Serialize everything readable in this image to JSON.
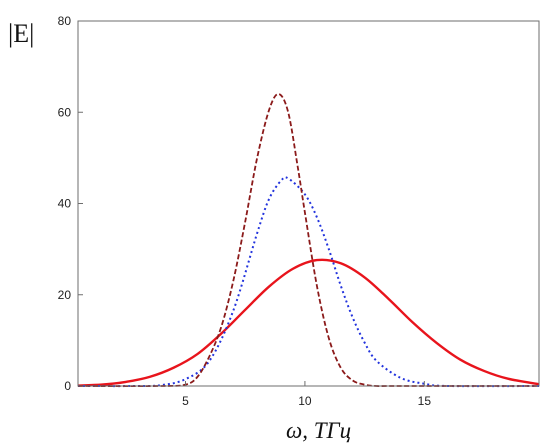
{
  "chart_data": {
    "type": "line",
    "ylabel": "|E|",
    "xlabel": "ω, ТГц",
    "xlim": [
      0.5,
      19.8
    ],
    "ylim": [
      0,
      80
    ],
    "x_ticks": [
      5,
      10,
      15
    ],
    "y_ticks": [
      0,
      20,
      40,
      60,
      80
    ],
    "grid": false,
    "series": [
      {
        "style": "solid",
        "color": "#e8141c",
        "x": [
          0.5,
          1.5,
          2.5,
          3.5,
          4.5,
          5.5,
          6.5,
          7.5,
          8.5,
          9.5,
          10.5,
          11.5,
          12.5,
          13.5,
          14.5,
          15.5,
          16.5,
          17.5,
          18.5,
          19.8
        ],
        "y": [
          0.1,
          0.3,
          0.9,
          2.0,
          4.0,
          7.0,
          11.5,
          16.7,
          21.8,
          25.7,
          27.6,
          26.9,
          23.8,
          19.1,
          14.0,
          9.5,
          5.8,
          3.3,
          1.6,
          0.4
        ]
      },
      {
        "style": "dotted",
        "color": "#2233dd",
        "x": [
          0.5,
          3.0,
          4.0,
          5.0,
          6.0,
          7.0,
          8.0,
          8.5,
          9.0,
          9.3,
          10.0,
          10.5,
          11.0,
          11.5,
          12.0,
          12.5,
          13.0,
          14.0,
          15.0,
          16.0,
          19.8
        ],
        "y": [
          0,
          0,
          0.2,
          1.5,
          5.5,
          16.5,
          33.5,
          41.0,
          45.0,
          45.5,
          42.0,
          37.0,
          30.0,
          22.0,
          15.0,
          9.5,
          5.5,
          1.8,
          0.5,
          0,
          0
        ]
      },
      {
        "style": "dashed",
        "color": "#8b1a1a",
        "x": [
          0.5,
          4.0,
          5.0,
          5.5,
          6.0,
          6.5,
          7.0,
          7.5,
          8.0,
          8.5,
          8.9,
          9.3,
          9.7,
          10.0,
          10.5,
          11.0,
          11.5,
          12.0,
          12.5,
          13.0,
          14.0,
          19.8
        ],
        "y": [
          0,
          0,
          0.3,
          2.0,
          6.5,
          13.0,
          23.0,
          36.0,
          50.0,
          60.5,
          64.0,
          60.0,
          48.0,
          38.0,
          22.0,
          10.5,
          4.0,
          1.2,
          0.3,
          0,
          0,
          0
        ]
      }
    ]
  }
}
